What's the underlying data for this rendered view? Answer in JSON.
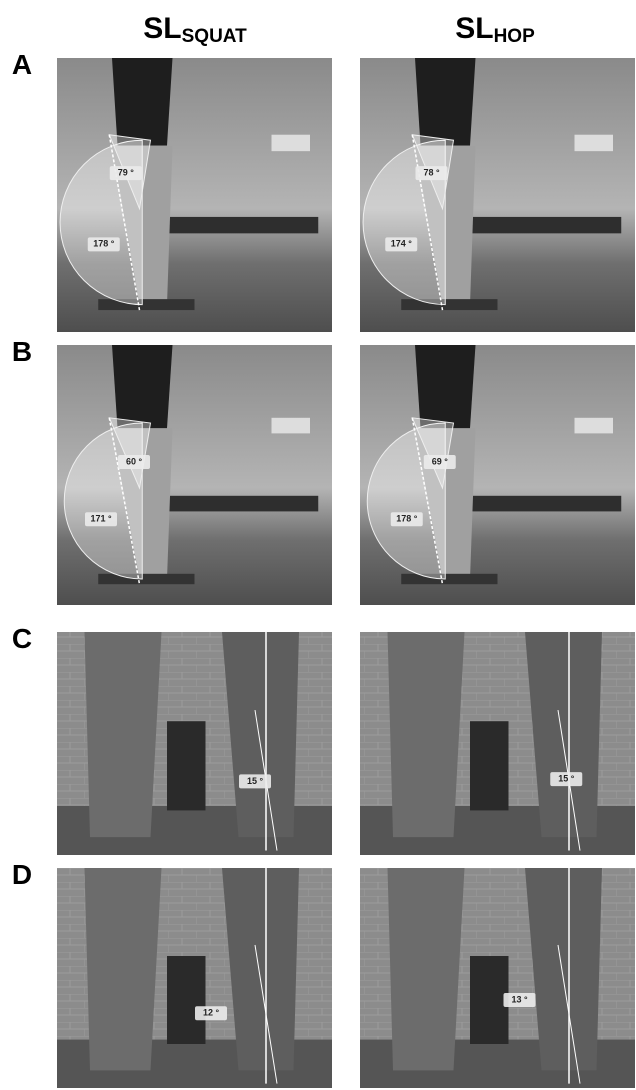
{
  "columns": [
    {
      "main": "SL",
      "sub": "SQUAT"
    },
    {
      "main": "SL",
      "sub": "HOP"
    }
  ],
  "rows": [
    {
      "label": "A",
      "panels": [
        {
          "angles": [
            "79 °",
            "178 °"
          ]
        },
        {
          "angles": [
            "78 °",
            "174 °"
          ]
        }
      ]
    },
    {
      "label": "B",
      "panels": [
        {
          "angles": [
            "60 °",
            "171 °"
          ]
        },
        {
          "angles": [
            "69 °",
            "178 °"
          ]
        }
      ]
    },
    {
      "label": "C",
      "panels": [
        {
          "angles": [
            "15 °"
          ]
        },
        {
          "angles": [
            "15 °"
          ]
        }
      ]
    },
    {
      "label": "D",
      "panels": [
        {
          "angles": [
            "12 °"
          ]
        },
        {
          "angles": [
            "13 °"
          ]
        }
      ]
    }
  ]
}
